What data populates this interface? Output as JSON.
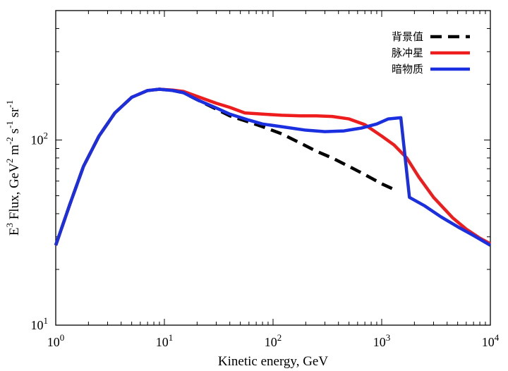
{
  "chart_data": {
    "type": "line",
    "xlabel": "Kinetic energy, GeV",
    "ylabel": "E^3 Flux, GeV^2 m^-2 s^-1 sr^-1",
    "x_scale": "log",
    "y_scale": "log",
    "xlim": [
      1,
      10000
    ],
    "ylim": [
      10,
      500
    ],
    "x_tick_labels": [
      {
        "value": 1,
        "base": "10",
        "exp": "0"
      },
      {
        "value": 10,
        "base": "10",
        "exp": "1"
      },
      {
        "value": 100,
        "base": "10",
        "exp": "2"
      },
      {
        "value": 1000,
        "base": "10",
        "exp": "3"
      },
      {
        "value": 10000,
        "base": "10",
        "exp": "4"
      }
    ],
    "y_tick_labels": [
      {
        "value": 10,
        "base": "10",
        "exp": "1"
      },
      {
        "value": 100,
        "base": "10",
        "exp": "2"
      }
    ],
    "ylabel_parts": {
      "main": "E",
      "exp1": "3",
      "middle": " Flux, GeV",
      "exp2": "2",
      "unit_tail": " m",
      "exp3": "-2",
      "s": " s",
      "exp4": "-1",
      "sr": " sr",
      "exp5": "-1"
    },
    "grid": false,
    "legend_position": "top-right",
    "series": [
      {
        "name": "背景值",
        "color": "#000000",
        "dashed": true,
        "points": [
          [
            1.0,
            27
          ],
          [
            1.35,
            45
          ],
          [
            1.8,
            72
          ],
          [
            2.5,
            105
          ],
          [
            3.5,
            140
          ],
          [
            5,
            170
          ],
          [
            7,
            185
          ],
          [
            9,
            188
          ],
          [
            12,
            185
          ],
          [
            15,
            180
          ],
          [
            20,
            165
          ],
          [
            30,
            147
          ],
          [
            40,
            135
          ],
          [
            60,
            125
          ],
          [
            80,
            118
          ],
          [
            120,
            108
          ],
          [
            180,
            96
          ],
          [
            250,
            87
          ],
          [
            350,
            80
          ],
          [
            500,
            72
          ],
          [
            700,
            65
          ],
          [
            1000,
            58
          ],
          [
            1400,
            53
          ]
        ]
      },
      {
        "name": "脉冲星",
        "color": "#ee1c1c",
        "dashed": false,
        "points": [
          [
            1.0,
            27
          ],
          [
            1.35,
            45
          ],
          [
            1.8,
            72
          ],
          [
            2.5,
            105
          ],
          [
            3.5,
            140
          ],
          [
            5,
            170
          ],
          [
            7,
            185
          ],
          [
            9,
            188
          ],
          [
            12,
            186
          ],
          [
            15,
            183
          ],
          [
            20,
            172
          ],
          [
            30,
            158
          ],
          [
            40,
            150
          ],
          [
            55,
            140
          ],
          [
            80,
            138
          ],
          [
            120,
            136
          ],
          [
            180,
            135
          ],
          [
            250,
            135
          ],
          [
            350,
            134
          ],
          [
            500,
            130
          ],
          [
            700,
            121
          ],
          [
            1000,
            105
          ],
          [
            1300,
            94
          ],
          [
            1700,
            80
          ],
          [
            2200,
            63
          ],
          [
            3000,
            49
          ],
          [
            4500,
            38
          ],
          [
            6000,
            33
          ],
          [
            8000,
            29.5
          ],
          [
            10000,
            27.5
          ]
        ]
      },
      {
        "name": "暗物质",
        "color": "#1a2fe0",
        "dashed": false,
        "points": [
          [
            1.0,
            27
          ],
          [
            1.35,
            45
          ],
          [
            1.8,
            72
          ],
          [
            2.5,
            105
          ],
          [
            3.5,
            140
          ],
          [
            5,
            170
          ],
          [
            7,
            185
          ],
          [
            9,
            188
          ],
          [
            12,
            185
          ],
          [
            15,
            180
          ],
          [
            20,
            165
          ],
          [
            30,
            149
          ],
          [
            40,
            138
          ],
          [
            60,
            128
          ],
          [
            80,
            122
          ],
          [
            120,
            118
          ],
          [
            200,
            113
          ],
          [
            300,
            111
          ],
          [
            450,
            112
          ],
          [
            650,
            116
          ],
          [
            900,
            122
          ],
          [
            1150,
            130
          ],
          [
            1500,
            132
          ],
          [
            1800,
            49
          ],
          [
            2500,
            44
          ],
          [
            3500,
            38.5
          ],
          [
            5000,
            34
          ],
          [
            7000,
            30.5
          ],
          [
            10000,
            27
          ]
        ]
      }
    ]
  }
}
